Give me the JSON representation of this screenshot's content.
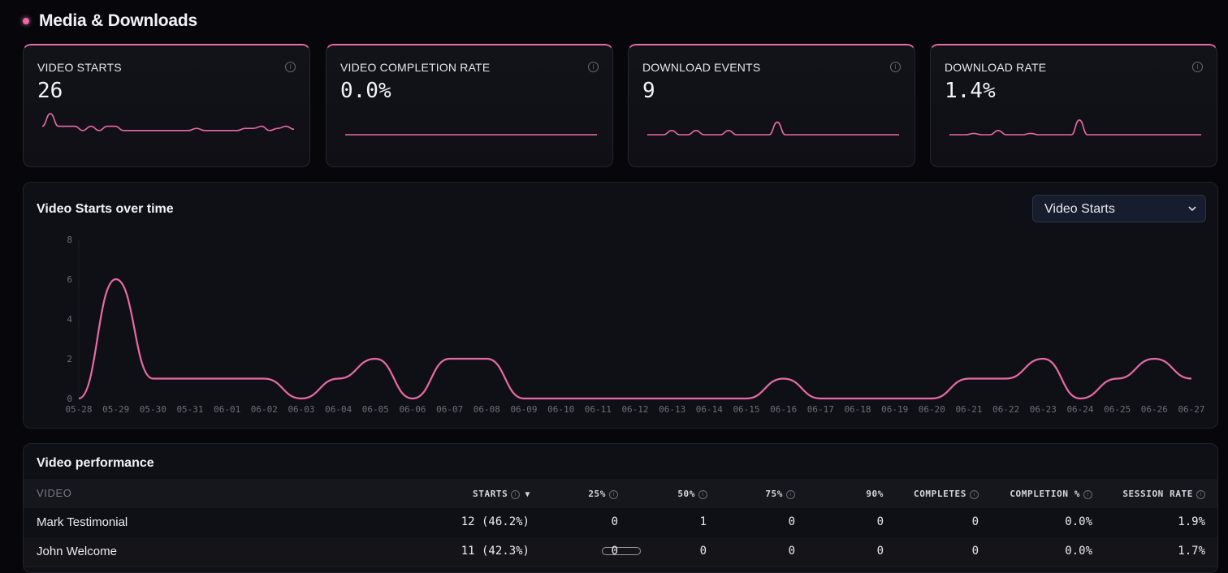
{
  "section": {
    "title": "Media & Downloads"
  },
  "kpis": [
    {
      "label": "VIDEO STARTS",
      "value": "26",
      "spark": [
        2,
        5,
        2,
        2,
        2,
        1,
        2,
        1,
        2,
        2,
        1,
        1,
        1,
        1,
        1,
        1,
        1,
        1,
        1,
        1.5,
        1,
        1,
        1,
        1,
        1,
        1.5,
        1.5,
        2,
        1,
        1.5,
        2,
        1.3
      ]
    },
    {
      "label": "VIDEO COMPLETION RATE",
      "value": "0.0%",
      "spark": [
        0,
        0,
        0,
        0,
        0,
        0,
        0,
        0,
        0,
        0,
        0,
        0,
        0,
        0,
        0,
        0,
        0,
        0,
        0,
        0,
        0,
        0,
        0,
        0,
        0,
        0,
        0,
        0,
        0,
        0,
        0,
        0
      ]
    },
    {
      "label": "DOWNLOAD EVENTS",
      "value": "9",
      "spark": [
        0,
        0,
        0,
        1,
        0,
        0,
        1,
        0,
        0,
        0,
        1,
        0,
        0,
        0,
        0,
        0,
        3,
        0,
        0,
        0,
        0,
        0,
        0,
        0,
        0,
        0,
        0,
        0,
        0,
        0,
        0,
        0
      ]
    },
    {
      "label": "DOWNLOAD RATE",
      "value": "1.4%",
      "spark": [
        0,
        0,
        0,
        0.3,
        0,
        0,
        1,
        0,
        0,
        0,
        0.3,
        0,
        0,
        0,
        0,
        0,
        3.5,
        0,
        0,
        0,
        0,
        0,
        0,
        0,
        0,
        0,
        0,
        0,
        0,
        0,
        0,
        0
      ]
    }
  ],
  "chart": {
    "title": "Video Starts over time",
    "select": "Video Starts"
  },
  "chart_data": {
    "type": "line",
    "series": [
      {
        "values": [
          0,
          6,
          1,
          1,
          1,
          1,
          0,
          1,
          2,
          0,
          2,
          2,
          0,
          0,
          0,
          0,
          0,
          0,
          0,
          1,
          0,
          0,
          0,
          0,
          1,
          1,
          2,
          0,
          1,
          2,
          1
        ]
      }
    ],
    "x": [
      "05-28",
      "05-29",
      "05-30",
      "05-31",
      "06-01",
      "06-02",
      "06-03",
      "06-04",
      "06-05",
      "06-06",
      "06-07",
      "06-08",
      "06-09",
      "06-10",
      "06-11",
      "06-12",
      "06-13",
      "06-14",
      "06-15",
      "06-16",
      "06-17",
      "06-18",
      "06-19",
      "06-20",
      "06-21",
      "06-22",
      "06-23",
      "06-24",
      "06-25",
      "06-26",
      "06-27"
    ],
    "yticks": [
      0,
      2,
      4,
      6,
      8
    ],
    "ylim": [
      0,
      8
    ],
    "grid": false,
    "color": "#e86aa6"
  },
  "table": {
    "title": "Video performance",
    "columns": [
      "VIDEO",
      "STARTS",
      "25%",
      "50%",
      "75%",
      "90%",
      "COMPLETES",
      "COMPLETION %",
      "SESSION RATE"
    ],
    "rows": [
      [
        "Mark Testimonial",
        "12 (46.2%)",
        "0",
        "1",
        "0",
        "0",
        "0",
        "0.0%",
        "1.9%"
      ],
      [
        "John Welcome",
        "11 (42.3%)",
        "0",
        "0",
        "0",
        "0",
        "0",
        "0.0%",
        "1.7%"
      ]
    ]
  },
  "colors": {
    "accent": "#e86aa6",
    "background": "#07070b",
    "card": "#0f0f16"
  }
}
